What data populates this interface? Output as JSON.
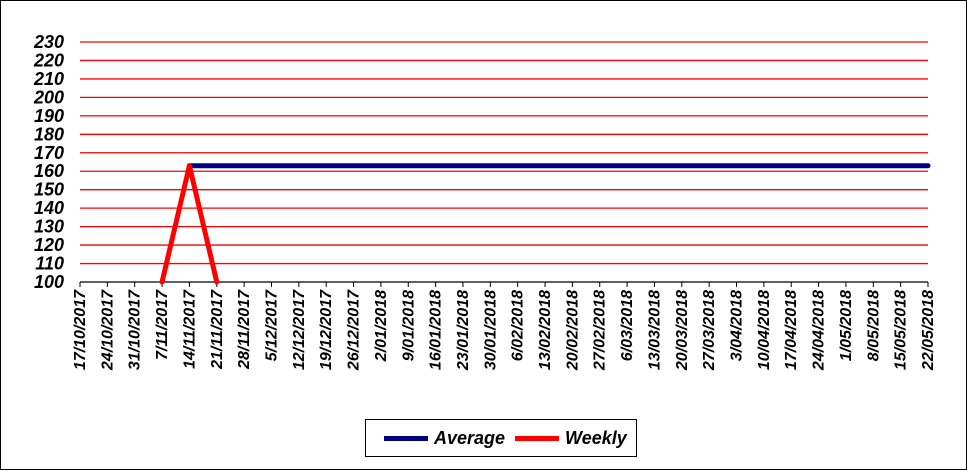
{
  "colors": {
    "background": "#ffffff",
    "gridline": "#ff0000",
    "axis": "#000000",
    "average_line": "#000080",
    "weekly_line": "#ff0000"
  },
  "chart_data": {
    "type": "line",
    "title": "",
    "xlabel": "",
    "ylabel": "",
    "grid": true,
    "legend_position": "bottom",
    "ylim": [
      100,
      230
    ],
    "y_ticks": [
      "100",
      "110",
      "120",
      "130",
      "140",
      "150",
      "160",
      "170",
      "180",
      "190",
      "200",
      "210",
      "220",
      "230"
    ],
    "categories": [
      "17/10/2017",
      "24/10/2017",
      "31/10/2017",
      "7/11/2017",
      "14/11/2017",
      "21/11/2017",
      "28/11/2017",
      "5/12/2017",
      "12/12/2017",
      "19/12/2017",
      "26/12/2017",
      "2/01/2018",
      "9/01/2018",
      "16/01/2018",
      "23/01/2018",
      "30/01/2018",
      "6/02/2018",
      "13/02/2018",
      "20/02/2018",
      "27/02/2018",
      "6/03/2018",
      "13/03/2018",
      "20/03/2018",
      "27/03/2018",
      "3/04/2018",
      "10/04/2018",
      "17/04/2018",
      "24/04/2018",
      "1/05/2018",
      "8/05/2018",
      "15/05/2018",
      "22/05/2018"
    ],
    "series": [
      {
        "name": "Average",
        "color": "#000080",
        "points": [
          {
            "x": "14/11/2017",
            "y": 163
          },
          {
            "x": "22/05/2018",
            "y": 163
          }
        ]
      },
      {
        "name": "Weekly",
        "color": "#ff0000",
        "points": [
          {
            "x": "7/11/2017",
            "y": 100
          },
          {
            "x": "14/11/2017",
            "y": 163
          },
          {
            "x": "21/11/2017",
            "y": 100
          }
        ]
      }
    ]
  },
  "legend": {
    "average_label": "Average",
    "weekly_label": "Weekly"
  }
}
